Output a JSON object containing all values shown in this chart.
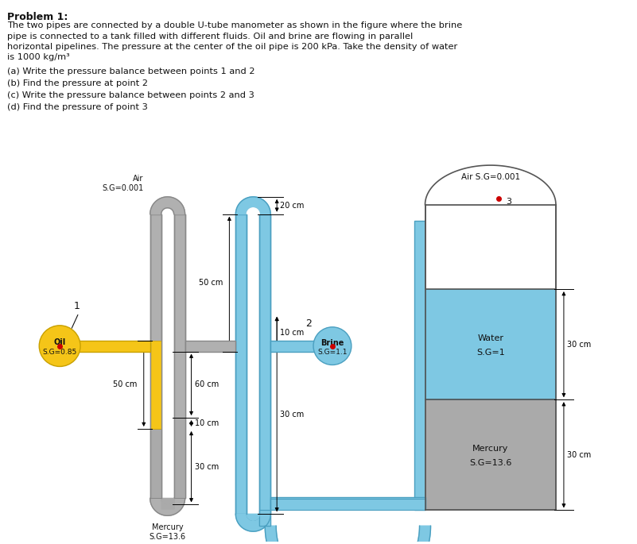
{
  "title_text": "Problem 1:",
  "body_lines": [
    "The two pipes are connected by a double U-tube manometer as shown in the figure where the brine",
    "pipe is connected to a tank filled with different fluids. Oil and brine are flowing in parallel",
    "horizontal pipelines. The pressure at the center of the oil pipe is 200 kPa. Take the density of water",
    "is 1000 kg/m³"
  ],
  "questions": [
    "(a) Write the pressure balance between points 1 and 2",
    "(b) Find the pressure at point 2",
    "(c) Write the pressure balance between points 2 and 3",
    "(d) Find the pressure of point 3"
  ],
  "gray_pipe": "#b0b0b0",
  "gray_dark": "#888888",
  "oil_fill": "#f5c518",
  "oil_edge": "#c8a000",
  "brine_fill": "#7ec8e3",
  "brine_edge": "#4a9fc0",
  "mercury_fill": "#aaaaaa",
  "mercury_edge": "#777777",
  "water_fill": "#7ec8e3",
  "red_dot": "#cc0000",
  "text_col": "#111111"
}
